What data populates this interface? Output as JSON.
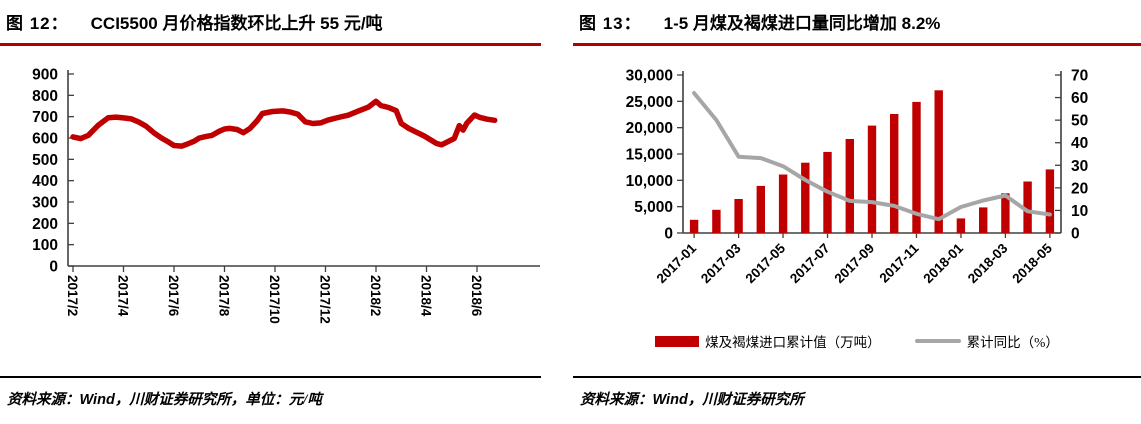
{
  "colors": {
    "series_red": "#C00000",
    "series_gray": "#A6A6A6",
    "rule_red": "#B00000",
    "axis": "#404040"
  },
  "fig12": {
    "label": "图 12：",
    "title": "CCI5500 月价格指数环比上升 55 元/吨",
    "source": {
      "label": "资料来源：",
      "wind": "Wind",
      "rest": "，川财证券研究所，单位：元/吨"
    },
    "chart_data": {
      "type": "line",
      "title": "CCI5500 月价格指数环比上升 55 元/吨",
      "ylabel": "元/吨",
      "ylim": [
        0,
        900
      ],
      "ytick_step": 100,
      "grid": false,
      "x_tick_labels": [
        "2017/2",
        "2017/4",
        "2017/6",
        "2017/8",
        "2017/10",
        "2017/12",
        "2018/2",
        "2018/4",
        "2018/6"
      ],
      "months_per_tick": 2,
      "series": [
        {
          "name": "CCI5500",
          "color": "#C00000",
          "points": [
            [
              0,
              605
            ],
            [
              0.3,
              597
            ],
            [
              0.6,
              612
            ],
            [
              1,
              660
            ],
            [
              1.4,
              695
            ],
            [
              1.7,
              698
            ],
            [
              2,
              694
            ],
            [
              2.3,
              690
            ],
            [
              2.6,
              675
            ],
            [
              2.9,
              655
            ],
            [
              3.2,
              625
            ],
            [
              3.5,
              600
            ],
            [
              3.8,
              580
            ],
            [
              4,
              565
            ],
            [
              4.3,
              562
            ],
            [
              4.5,
              570
            ],
            [
              4.8,
              585
            ],
            [
              5,
              600
            ],
            [
              5.3,
              608
            ],
            [
              5.5,
              612
            ],
            [
              5.8,
              632
            ],
            [
              6,
              642
            ],
            [
              6.2,
              645
            ],
            [
              6.5,
              640
            ],
            [
              6.75,
              625
            ],
            [
              7,
              644
            ],
            [
              7.3,
              682
            ],
            [
              7.5,
              715
            ],
            [
              7.9,
              724
            ],
            [
              8.3,
              727
            ],
            [
              8.6,
              722
            ],
            [
              8.9,
              712
            ],
            [
              9.2,
              676
            ],
            [
              9.5,
              668
            ],
            [
              9.8,
              671
            ],
            [
              10.1,
              684
            ],
            [
              10.5,
              696
            ],
            [
              10.9,
              707
            ],
            [
              11.3,
              726
            ],
            [
              11.7,
              745
            ],
            [
              12,
              772
            ],
            [
              12.2,
              752
            ],
            [
              12.5,
              743
            ],
            [
              12.8,
              728
            ],
            [
              13,
              668
            ],
            [
              13.3,
              645
            ],
            [
              13.6,
              627
            ],
            [
              13.9,
              610
            ],
            [
              14.1,
              596
            ],
            [
              14.4,
              574
            ],
            [
              14.6,
              568
            ],
            [
              14.9,
              586
            ],
            [
              15.1,
              598
            ],
            [
              15.3,
              658
            ],
            [
              15.45,
              637
            ],
            [
              15.6,
              670
            ],
            [
              15.9,
              708
            ],
            [
              16.1,
              697
            ],
            [
              16.4,
              688
            ],
            [
              16.7,
              683
            ]
          ]
        }
      ]
    }
  },
  "fig13": {
    "label": "图 13：",
    "title": "1-5 月煤及褐煤进口量同比增加 8.2%",
    "source": {
      "label": "资料来源：",
      "wind": "Wind",
      "rest": "，川财证券研究所"
    },
    "legend": [
      {
        "label": "煤及褐煤进口累计值（万吨）",
        "type": "bar",
        "color": "#C00000"
      },
      {
        "label": "累计同比（%）",
        "type": "line",
        "color": "#A6A6A6"
      }
    ],
    "chart_data": {
      "type": "combo",
      "title": "1-5 月煤及褐煤进口量同比增加 8.2%",
      "categories": [
        "2017-01",
        "2017-02",
        "2017-03",
        "2017-04",
        "2017-05",
        "2017-06",
        "2017-07",
        "2017-08",
        "2017-09",
        "2017-10",
        "2017-11",
        "2017-12",
        "2018-01",
        "2018-02",
        "2018-03",
        "2018-04",
        "2018-05"
      ],
      "x_label_every": 2,
      "left_ylim": [
        0,
        30000
      ],
      "left_ytick_step": 5000,
      "right_ylim": [
        0,
        70
      ],
      "right_ytick_step": 10,
      "grid": false,
      "legend_position": "bottom",
      "series": [
        {
          "name": "煤及褐煤进口累计值（万吨）",
          "type": "bar",
          "axis": "left",
          "color": "#C00000",
          "values": [
            2500,
            4400,
            6450,
            8950,
            11100,
            13350,
            15400,
            17850,
            20400,
            22600,
            24900,
            27100,
            2780,
            4870,
            7540,
            9770,
            12070
          ]
        },
        {
          "name": "累计同比（%）",
          "type": "line",
          "axis": "right",
          "color": "#A6A6A6",
          "values": [
            62,
            50,
            33.8,
            33.2,
            29.6,
            23.5,
            18.3,
            14.2,
            13.7,
            12,
            8.5,
            6.1,
            11.5,
            14.4,
            16.6,
            9.6,
            8.2
          ]
        }
      ]
    }
  }
}
